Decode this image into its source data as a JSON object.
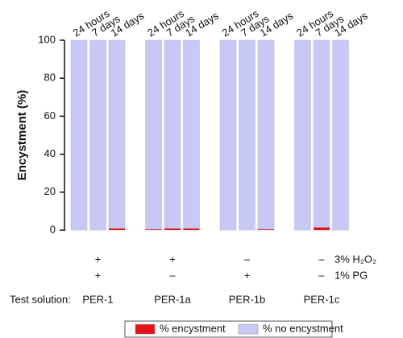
{
  "chart_data": {
    "type": "stacked-bar",
    "ylabel": "Encystment (%)",
    "groups": [
      "PER-1",
      "PER-1a",
      "PER-1b",
      "PER-1c"
    ],
    "categories": [
      "24 hours",
      "7 days",
      "14 days",
      "24 hours",
      "7 days",
      "14 days",
      "24 hours",
      "7 days",
      "14 days",
      "24 hours",
      "7 days",
      "14 days"
    ],
    "series": [
      {
        "name": "% encystment",
        "color": "#e3141c",
        "values": [
          0,
          0,
          1,
          0.5,
          1,
          1,
          0,
          0,
          0.5,
          0,
          1.5,
          0
        ]
      },
      {
        "name": "% no encystment",
        "color": "#c8c8f4",
        "values": [
          100,
          100,
          99,
          99.5,
          99,
          99,
          100,
          100,
          99.5,
          100,
          98.5,
          100
        ]
      }
    ],
    "ylim": [
      0,
      100
    ],
    "yticks": [
      0,
      20,
      40,
      60,
      80,
      100
    ],
    "conditions": [
      {
        "label": "3% H₂O₂",
        "signs": [
          "+",
          "+",
          "–",
          "–"
        ]
      },
      {
        "label": "1% PG",
        "signs": [
          "+",
          "–",
          "+",
          "–"
        ]
      }
    ],
    "row_label": "Test solution:"
  }
}
